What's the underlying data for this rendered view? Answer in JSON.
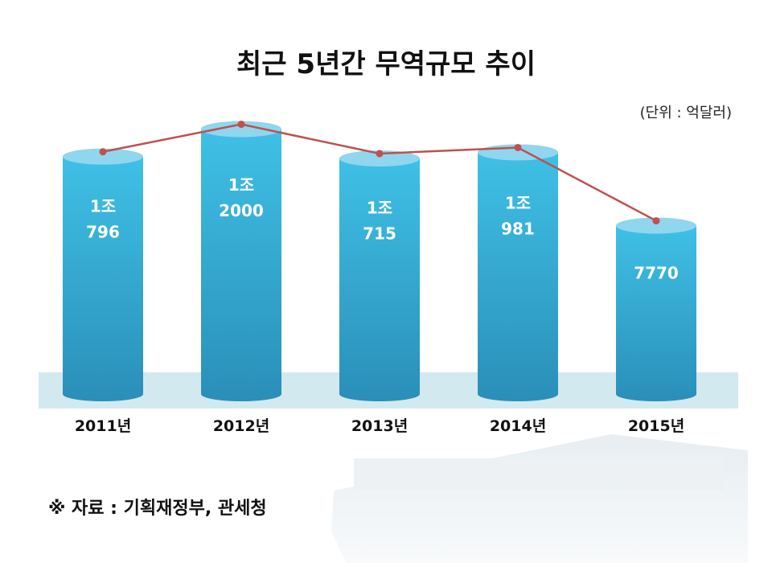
{
  "chart_data": {
    "type": "bar",
    "title": "최근 5년간 무역규모 추이",
    "unit_note": "(단위 : 억달러)",
    "categories": [
      "2011년",
      "2012년",
      "2013년",
      "2014년",
      "2015년"
    ],
    "values": [
      10796,
      12000,
      10715,
      10981,
      7770
    ],
    "value_labels": [
      [
        "1조",
        "796"
      ],
      [
        "1조",
        "2000"
      ],
      [
        "1조",
        "715"
      ],
      [
        "1조",
        "981"
      ],
      [
        "7770"
      ]
    ],
    "overlay_line": true,
    "xlabel": "",
    "ylabel": "",
    "grid": false
  },
  "source": "※ 자료 : 기획재정부, 관세청",
  "colors": {
    "bar_top": "#8fd6ee",
    "bar_body": "#2aa6cf",
    "bar_dark": "#1f7fa8",
    "line": "#c0504d",
    "band": "#d3e9f0"
  }
}
